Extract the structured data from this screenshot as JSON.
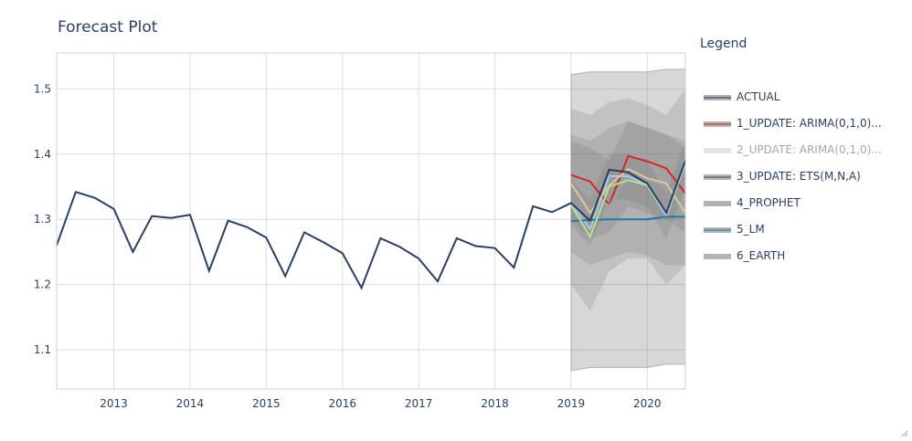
{
  "chart_data": {
    "type": "line",
    "title": "Forecast Plot",
    "xlabel": "",
    "ylabel": "",
    "xlim": [
      2012.25,
      2020.5
    ],
    "ylim": [
      1.04,
      1.555
    ],
    "grid": true,
    "x_ticks": [
      2013,
      2014,
      2015,
      2016,
      2017,
      2018,
      2019,
      2020
    ],
    "y_ticks": [
      1.1,
      1.2,
      1.3,
      1.4,
      1.5
    ],
    "legend": {
      "title": "Legend",
      "placement": "right",
      "entries": [
        {
          "label": "ACTUAL",
          "color": "#2a3f5f",
          "dim": false
        },
        {
          "label": "1_UPDATE: ARIMA(0,1,0)...",
          "color": "#d62728",
          "dim": false
        },
        {
          "label": "2_UPDATE: ARIMA(0,1,0)...",
          "color": "#9bbfd0",
          "dim": true
        },
        {
          "label": "3_UPDATE: ETS(M,N,A)",
          "color": "#555555",
          "dim": false
        },
        {
          "label": "4_PROPHET",
          "color": "#aaaaaa",
          "dim": false
        },
        {
          "label": "5_LM",
          "color": "#1f77b4",
          "dim": false
        },
        {
          "label": "6_EARTH",
          "color": "#c8b48a",
          "dim": false
        }
      ]
    },
    "actual": {
      "name": "ACTUAL",
      "color": "#2a3f5f",
      "x": [
        2012.25,
        2012.5,
        2012.75,
        2013,
        2013.25,
        2013.5,
        2013.75,
        2014,
        2014.25,
        2014.5,
        2014.75,
        2015,
        2015.25,
        2015.5,
        2015.75,
        2016,
        2016.25,
        2016.5,
        2016.75,
        2017,
        2017.25,
        2017.5,
        2017.75,
        2018,
        2018.25,
        2018.5,
        2018.75,
        2019,
        2019.25,
        2019.5,
        2019.75,
        2020,
        2020.25,
        2020.5
      ],
      "y": [
        1.26,
        1.342,
        1.333,
        1.316,
        1.25,
        1.305,
        1.302,
        1.307,
        1.221,
        1.298,
        1.288,
        1.272,
        1.213,
        1.28,
        1.265,
        1.248,
        1.195,
        1.271,
        1.258,
        1.24,
        1.205,
        1.271,
        1.259,
        1.256,
        1.226,
        1.32,
        1.311,
        1.325,
        1.298,
        1.376,
        1.372,
        1.355,
        1.31,
        1.39
      ]
    },
    "forecast_x": [
      2019,
      2019.25,
      2019.5,
      2019.75,
      2020,
      2020.25,
      2020.5
    ],
    "forecasts": [
      {
        "name": "1_UPDATE: ARIMA(0,1,0)...",
        "color": "#d62728",
        "y": [
          1.368,
          1.358,
          1.322,
          1.397,
          1.389,
          1.378,
          1.34
        ]
      },
      {
        "name": "3_UPDATE: ETS(M,N,A)",
        "color": "#9aa3ad",
        "y": [
          1.363,
          1.345,
          1.32,
          1.37,
          1.36,
          1.35,
          1.31
        ]
      },
      {
        "name": "4_PROPHET",
        "color": "#a6c8e8",
        "y": [
          1.325,
          1.285,
          1.366,
          1.366,
          1.352,
          1.305,
          1.385
        ]
      },
      {
        "name": "5_LM",
        "color": "#1f77b4",
        "y": [
          1.297,
          1.299,
          1.3,
          1.3,
          1.3,
          1.304,
          1.304
        ]
      },
      {
        "name": "6_EARTH",
        "color": "#d8c89a",
        "y": [
          1.355,
          1.31,
          1.352,
          1.377,
          1.363,
          1.355,
          1.31
        ]
      },
      {
        "name": "2_UPDATE: ARIMA(0,1,0)...",
        "color": "#b6e08f",
        "y": [
          1.322,
          1.273,
          1.35,
          1.36,
          1.352,
          1.31,
          1.388
        ]
      }
    ],
    "intervals": [
      {
        "name": "5_LM",
        "lower": [
          1.068,
          1.073,
          1.073,
          1.073,
          1.073,
          1.078,
          1.078
        ],
        "upper": [
          1.522,
          1.526,
          1.526,
          1.526,
          1.526,
          1.53,
          1.53
        ]
      },
      {
        "name": "6_EARTH",
        "lower": [
          1.2,
          1.16,
          1.22,
          1.24,
          1.24,
          1.2,
          1.23
        ],
        "upper": [
          1.47,
          1.46,
          1.48,
          1.485,
          1.475,
          1.46,
          1.5
        ]
      },
      {
        "name": "3_UPDATE: ETS(M,N,A)",
        "lower": [
          1.25,
          1.23,
          1.24,
          1.25,
          1.245,
          1.23,
          1.23
        ],
        "upper": [
          1.43,
          1.42,
          1.44,
          1.45,
          1.44,
          1.43,
          1.42
        ]
      },
      {
        "name": "1_UPDATE: ARIMA(0,1,0)...",
        "lower": [
          1.3,
          1.27,
          1.28,
          1.32,
          1.31,
          1.3,
          1.28
        ],
        "upper": [
          1.42,
          1.41,
          1.39,
          1.45,
          1.44,
          1.43,
          1.41
        ]
      },
      {
        "name": "4_PROPHET",
        "lower": [
          1.29,
          1.26,
          1.33,
          1.33,
          1.32,
          1.27,
          1.35
        ],
        "upper": [
          1.36,
          1.33,
          1.4,
          1.4,
          1.39,
          1.34,
          1.42
        ]
      }
    ]
  }
}
